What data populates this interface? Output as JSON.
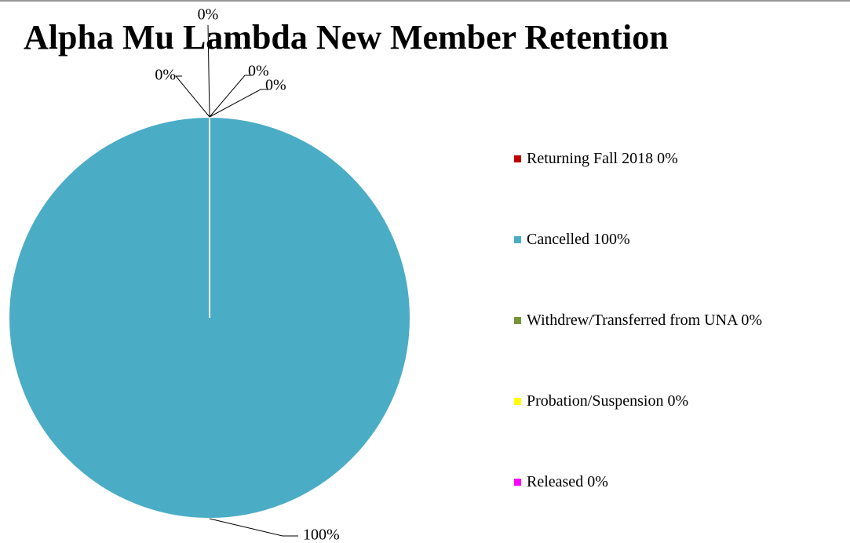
{
  "chart_data": {
    "type": "pie",
    "title": "Alpha Mu Lambda New Member Retention",
    "categories": [
      "Returning Fall 2018",
      "Cancelled",
      "Withdrew/Transferred from UNA",
      "Probation/Suspension",
      "Released"
    ],
    "values": [
      0,
      100,
      0,
      0,
      0
    ],
    "value_labels": [
      "0%",
      "100%",
      "0%",
      "0%",
      "0%"
    ],
    "colors": [
      "#c00000",
      "#4bacc6",
      "#77933c",
      "#ffff00",
      "#ff00ff"
    ],
    "legend": "right"
  }
}
